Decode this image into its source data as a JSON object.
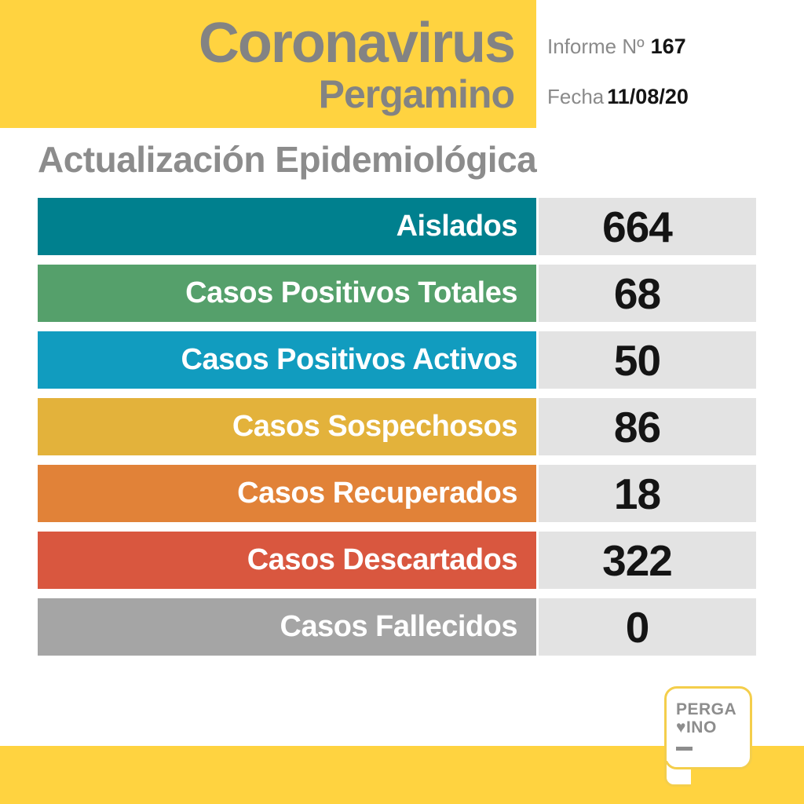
{
  "colors": {
    "brand_yellow": "#FFD340",
    "header_text_gray": "#838383",
    "title_gray": "#8C8C8C",
    "meta_gray": "#8A8A8A",
    "value_black": "#141414",
    "value_cell_bg": "#E3E3E3",
    "logo_border_yellow": "#F4CE4B",
    "logo_text_gray": "#8D8D8D"
  },
  "header": {
    "title": "Coronavirus",
    "subtitle": "Pergamino",
    "informe_label": "Informe Nº",
    "informe_value": "167",
    "fecha_label": "Fecha",
    "fecha_value": "11/08/20"
  },
  "section_title": "Actualización Epidemiológica",
  "table": {
    "rows": [
      {
        "label": "Aislados",
        "value": "664",
        "color": "#00808E"
      },
      {
        "label": "Casos Positivos Totales",
        "value": "68",
        "color": "#55A06B"
      },
      {
        "label": "Casos Positivos Activos",
        "value": "50",
        "color": "#119CBF"
      },
      {
        "label": "Casos Sospechosos",
        "value": "86",
        "color": "#E3B23B"
      },
      {
        "label": "Casos Recuperados",
        "value": "18",
        "color": "#E18238"
      },
      {
        "label": "Casos Descartados",
        "value": "322",
        "color": "#D9573F"
      },
      {
        "label": "Casos Fallecidos",
        "value": "0",
        "color": "#A5A5A5"
      }
    ]
  },
  "logo": {
    "line1": "PERGA",
    "heart_icon": "♥",
    "line2": "INO"
  },
  "chart_data": {
    "type": "table",
    "title": "Actualización Epidemiológica",
    "report_number": 167,
    "date": "11/08/20",
    "categories": [
      "Aislados",
      "Casos Positivos Totales",
      "Casos Positivos Activos",
      "Casos Sospechosos",
      "Casos Recuperados",
      "Casos Descartados",
      "Casos Fallecidos"
    ],
    "values": [
      664,
      68,
      50,
      86,
      18,
      322,
      0
    ],
    "row_colors": [
      "#00808E",
      "#55A06B",
      "#119CBF",
      "#E3B23B",
      "#E18238",
      "#D9573F",
      "#A5A5A5"
    ]
  }
}
